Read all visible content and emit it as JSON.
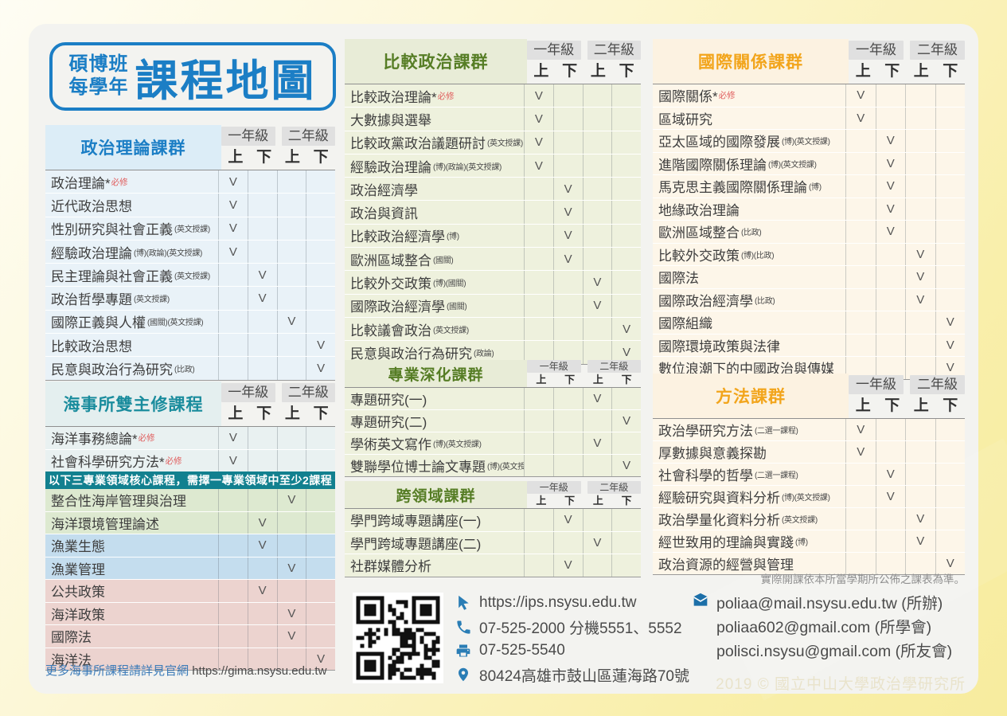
{
  "title": {
    "line1": "碩博班",
    "line2": "每學年",
    "main": "課程地圖"
  },
  "grades": {
    "year1": "一年級",
    "year2": "二年級",
    "sems": [
      "上",
      "下",
      "上",
      "下"
    ]
  },
  "check_symbol": "V",
  "colors": {
    "blue": "#1b7ec5",
    "teal": "#1a8c9d",
    "green": "#567d25",
    "orange": "#f2a51c",
    "required_red": "#e05c5c",
    "banner_teal": "#12808f",
    "icon_blue": "#2a7db5"
  },
  "tables": {
    "politics_theory": {
      "title": "政治理論課群",
      "rows": [
        {
          "name": "政治理論*",
          "req": "必修",
          "checks": [
            1,
            0,
            0,
            0
          ]
        },
        {
          "name": "近代政治思想",
          "checks": [
            1,
            0,
            0,
            0
          ]
        },
        {
          "name": "性別研究與社會正義",
          "sub": "(英文授課)",
          "checks": [
            1,
            0,
            0,
            0
          ]
        },
        {
          "name": "經驗政治理論",
          "sub": "(博)(政論)(英文授課)",
          "checks": [
            1,
            0,
            0,
            0
          ]
        },
        {
          "name": "民主理論與社會正義",
          "sub": "(英文授課)",
          "checks": [
            0,
            1,
            0,
            0
          ]
        },
        {
          "name": "政治哲學專題",
          "sub": "(英文授課)",
          "checks": [
            0,
            1,
            0,
            0
          ]
        },
        {
          "name": "國際正義與人權",
          "sub": "(國關)(英文授課)",
          "checks": [
            0,
            0,
            1,
            0
          ]
        },
        {
          "name": "比較政治思想",
          "checks": [
            0,
            0,
            0,
            1
          ]
        },
        {
          "name": "民意與政治行為研究",
          "sub": "(比政)",
          "checks": [
            0,
            0,
            0,
            1
          ]
        }
      ]
    },
    "marine": {
      "title": "海事所雙主修課程",
      "banner": "以下三專業領域核心課程，需擇一專業領域中至少2課程",
      "rows": [
        {
          "name": "海洋事務總論*",
          "req": "必修",
          "checks": [
            1,
            0,
            0,
            0
          ],
          "tint": "base"
        },
        {
          "name": "社會科學研究方法*",
          "req": "必修",
          "checks": [
            1,
            0,
            0,
            0
          ],
          "tint": "base"
        },
        {
          "banner": true
        },
        {
          "name": "整合性海岸管理與治理",
          "checks": [
            0,
            0,
            1,
            0
          ],
          "tint": "green"
        },
        {
          "name": "海洋環境管理論述",
          "checks": [
            0,
            1,
            0,
            0
          ],
          "tint": "green"
        },
        {
          "name": "漁業生態",
          "checks": [
            0,
            1,
            0,
            0
          ],
          "tint": "blue"
        },
        {
          "name": "漁業管理",
          "checks": [
            0,
            0,
            1,
            0
          ],
          "tint": "blue"
        },
        {
          "name": "公共政策",
          "checks": [
            0,
            1,
            0,
            0
          ],
          "tint": "pink"
        },
        {
          "name": "海洋政策",
          "checks": [
            0,
            0,
            1,
            0
          ],
          "tint": "pink"
        },
        {
          "name": "國際法",
          "checks": [
            0,
            0,
            1,
            0
          ],
          "tint": "pink"
        },
        {
          "name": "海洋法",
          "checks": [
            0,
            0,
            0,
            1
          ],
          "tint": "pink"
        }
      ]
    },
    "compare": {
      "title": "比較政治課群",
      "rows": [
        {
          "name": "比較政治理論*",
          "req": "必修",
          "checks": [
            1,
            0,
            0,
            0
          ]
        },
        {
          "name": "大數據與選舉",
          "checks": [
            1,
            0,
            0,
            0
          ]
        },
        {
          "name": "比較政黨政治議題研討",
          "sub": "(英文授課)",
          "checks": [
            1,
            0,
            0,
            0
          ]
        },
        {
          "name": "經驗政治理論",
          "sub": "(博)(政論)(英文授課)",
          "checks": [
            1,
            0,
            0,
            0
          ]
        },
        {
          "name": "政治經濟學",
          "checks": [
            0,
            1,
            0,
            0
          ]
        },
        {
          "name": "政治與資訊",
          "checks": [
            0,
            1,
            0,
            0
          ]
        },
        {
          "name": "比較政治經濟學",
          "sub": "(博)",
          "checks": [
            0,
            1,
            0,
            0
          ]
        },
        {
          "name": "歐洲區域整合",
          "sub": "(國關)",
          "checks": [
            0,
            1,
            0,
            0
          ]
        },
        {
          "name": "比較外交政策",
          "sub": "(博)(國關)",
          "checks": [
            0,
            0,
            1,
            0
          ]
        },
        {
          "name": "國際政治經濟學",
          "sub": "(國關)",
          "checks": [
            0,
            0,
            1,
            0
          ]
        },
        {
          "name": "比較議會政治",
          "sub": "(英文授課)",
          "checks": [
            0,
            0,
            0,
            1
          ]
        },
        {
          "name": "民意與政治行為研究",
          "sub": "(政論)",
          "checks": [
            0,
            0,
            0,
            1
          ]
        }
      ]
    },
    "deepening": {
      "title": "專業深化課群",
      "rows": [
        {
          "name": "專題研究(一)",
          "checks": [
            0,
            0,
            1,
            0
          ]
        },
        {
          "name": "專題研究(二)",
          "checks": [
            0,
            0,
            0,
            1
          ]
        },
        {
          "name": "學術英文寫作",
          "sub": "(博)(英文授課)",
          "checks": [
            0,
            0,
            1,
            0
          ]
        },
        {
          "name": "雙聯學位博士論文專題",
          "sub": "(博)(英文授課)",
          "checks": [
            0,
            0,
            0,
            1
          ]
        }
      ]
    },
    "cross": {
      "title": "跨領域課群",
      "rows": [
        {
          "name": "學門跨域專題講座(一)",
          "checks": [
            0,
            1,
            0,
            0
          ]
        },
        {
          "name": "學門跨域專題講座(二)",
          "checks": [
            0,
            0,
            1,
            0
          ]
        },
        {
          "name": "社群媒體分析",
          "checks": [
            0,
            1,
            0,
            0
          ]
        }
      ]
    },
    "ir": {
      "title": "國際關係課群",
      "rows": [
        {
          "name": "國際關係*",
          "req": "必修",
          "checks": [
            1,
            0,
            0,
            0
          ]
        },
        {
          "name": "區域研究",
          "checks": [
            1,
            0,
            0,
            0
          ]
        },
        {
          "name": "亞太區域的國際發展",
          "sub": "(博)(英文授課)",
          "checks": [
            0,
            1,
            0,
            0
          ]
        },
        {
          "name": "進階國際關係理論",
          "sub": "(博)(英文授課)",
          "checks": [
            0,
            1,
            0,
            0
          ]
        },
        {
          "name": "馬克思主義國際關係理論",
          "sub": "(博)",
          "checks": [
            0,
            1,
            0,
            0
          ]
        },
        {
          "name": "地緣政治理論",
          "checks": [
            0,
            1,
            0,
            0
          ]
        },
        {
          "name": "歐洲區域整合",
          "sub": "(比政)",
          "checks": [
            0,
            1,
            0,
            0
          ]
        },
        {
          "name": "比較外交政策",
          "sub": "(博)(比政)",
          "checks": [
            0,
            0,
            1,
            0
          ]
        },
        {
          "name": "國際法",
          "checks": [
            0,
            0,
            1,
            0
          ]
        },
        {
          "name": "國際政治經濟學",
          "sub": "(比政)",
          "checks": [
            0,
            0,
            1,
            0
          ]
        },
        {
          "name": "國際組織",
          "checks": [
            0,
            0,
            0,
            1
          ]
        },
        {
          "name": "國際環境政策與法律",
          "checks": [
            0,
            0,
            0,
            1
          ]
        },
        {
          "name": "數位浪潮下的中國政治與傳媒",
          "checks": [
            0,
            0,
            0,
            1
          ]
        }
      ]
    },
    "methods": {
      "title": "方法課群",
      "rows": [
        {
          "name": "政治學研究方法",
          "sub": "(二選一課程)",
          "checks": [
            1,
            0,
            0,
            0
          ]
        },
        {
          "name": "厚數據與意義探勘",
          "checks": [
            1,
            0,
            0,
            0
          ]
        },
        {
          "name": "社會科學的哲學",
          "sub": "(二選一課程)",
          "checks": [
            0,
            1,
            0,
            0
          ]
        },
        {
          "name": "經驗研究與資料分析",
          "sub": "(博)(英文授課)",
          "checks": [
            0,
            1,
            0,
            0
          ]
        },
        {
          "name": "政治學量化資料分析",
          "sub": "(英文授課)",
          "checks": [
            0,
            0,
            1,
            0
          ]
        },
        {
          "name": "經世致用的理論與實踐",
          "sub": "(博)",
          "checks": [
            0,
            0,
            1,
            0
          ]
        },
        {
          "name": "政治資源的經營與管理",
          "checks": [
            0,
            0,
            0,
            1
          ]
        }
      ]
    }
  },
  "marine_footer": {
    "label": "更多海事所課程請詳見官網",
    "url": "https://gima.nsysu.edu.tw"
  },
  "note": "實際開課依本所當學期所公佈之課表為準。",
  "contacts": [
    {
      "icon": "cursor-icon",
      "text": "https://ips.nsysu.edu.tw"
    },
    {
      "icon": "phone-icon",
      "text": "07-525-2000 分機5551、5552"
    },
    {
      "icon": "fax-icon",
      "text": "07-525-5540"
    },
    {
      "icon": "location-pin-icon",
      "text": "80424高雄市鼓山區蓮海路70號"
    }
  ],
  "emails": [
    {
      "text": "poliaa@mail.nsysu.edu.tw (所辦)"
    },
    {
      "text": "poliaa602@gmail.com (所學會)"
    },
    {
      "text": "polisci.nsysu@gmail.com (所友會)"
    }
  ],
  "copyright": "2019 © 國立中山大學政治學研究所"
}
